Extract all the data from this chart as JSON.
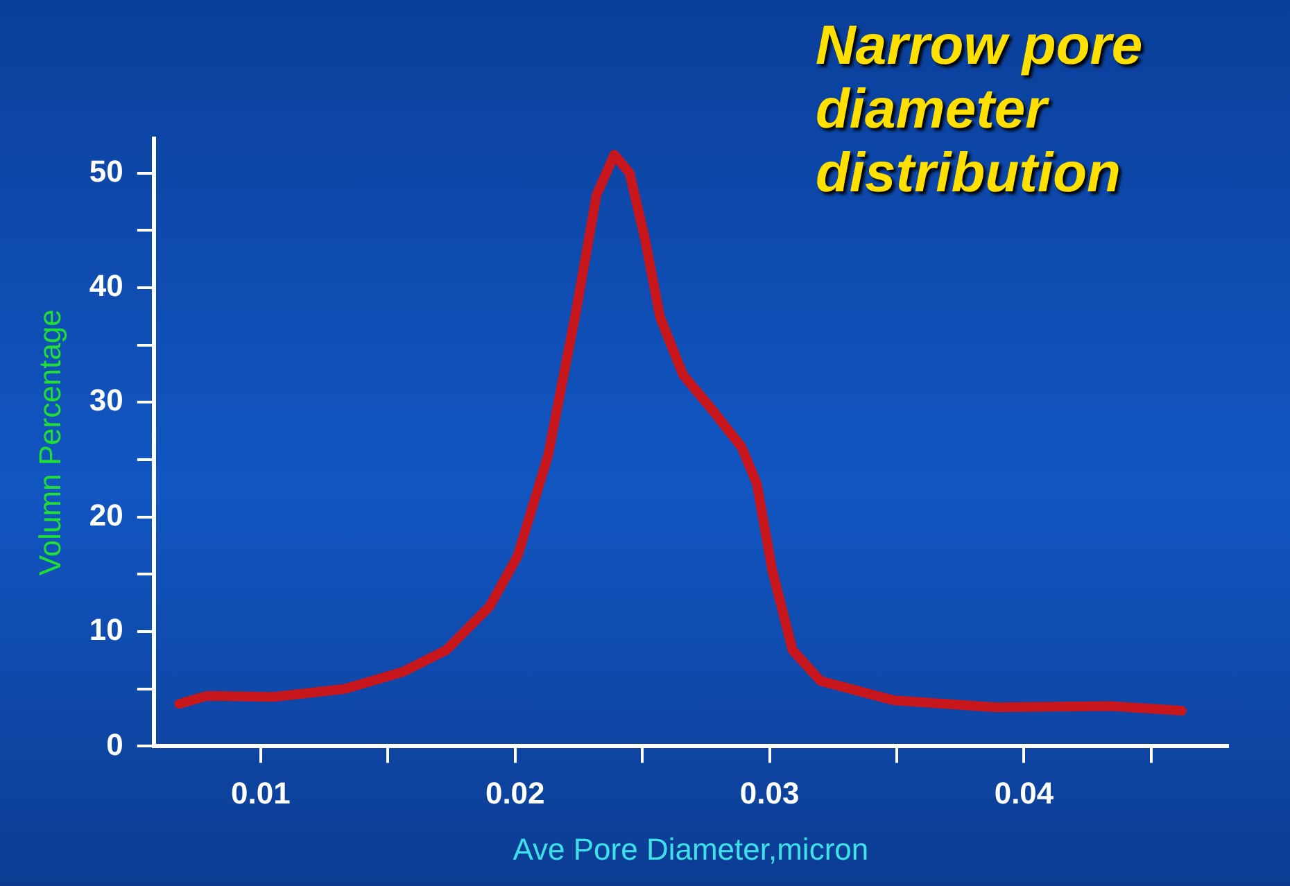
{
  "chart_data": {
    "type": "line",
    "title": "Narrow pore diameter distribution",
    "xlabel": "Ave Pore Diameter,micron",
    "ylabel": "Volumn Percentage",
    "x": [
      0.0068,
      0.0079,
      0.0105,
      0.0133,
      0.0156,
      0.0173,
      0.019,
      0.0201,
      0.0213,
      0.0224,
      0.0232,
      0.0239,
      0.0245,
      0.0251,
      0.0257,
      0.0266,
      0.0278,
      0.0289,
      0.0295,
      0.0301,
      0.0309,
      0.032,
      0.0349,
      0.0389,
      0.0434,
      0.0462
    ],
    "series": [
      {
        "color": "#c8161d",
        "values": [
          3.7,
          4.4,
          4.3,
          5.0,
          6.5,
          8.4,
          12.2,
          16.6,
          25.4,
          38.0,
          48.1,
          51.6,
          50.0,
          44.3,
          37.4,
          32.4,
          29.2,
          26.1,
          22.9,
          15.4,
          8.4,
          5.7,
          4.0,
          3.4,
          3.5,
          3.1
        ]
      }
    ],
    "xlim": [
      0.0058,
      0.048
    ],
    "xticks": [
      {
        "value": 0.01,
        "label": "0.01"
      },
      {
        "value": 0.015,
        "label": null
      },
      {
        "value": 0.02,
        "label": "0.02"
      },
      {
        "value": 0.025,
        "label": null
      },
      {
        "value": 0.03,
        "label": "0.03"
      },
      {
        "value": 0.035,
        "label": null
      },
      {
        "value": 0.04,
        "label": "0.04"
      },
      {
        "value": 0.045,
        "label": null
      }
    ],
    "ylim": [
      0,
      53
    ],
    "yticks": [
      0,
      {
        "value": 5,
        "label": null
      },
      10,
      {
        "value": 15,
        "label": null
      },
      20,
      {
        "value": 25,
        "label": null
      },
      30,
      {
        "value": 35,
        "label": null
      },
      40,
      {
        "value": 45,
        "label": null
      },
      50
    ],
    "grid": false,
    "legend": false,
    "marker": "none",
    "line_style": "solid"
  }
}
